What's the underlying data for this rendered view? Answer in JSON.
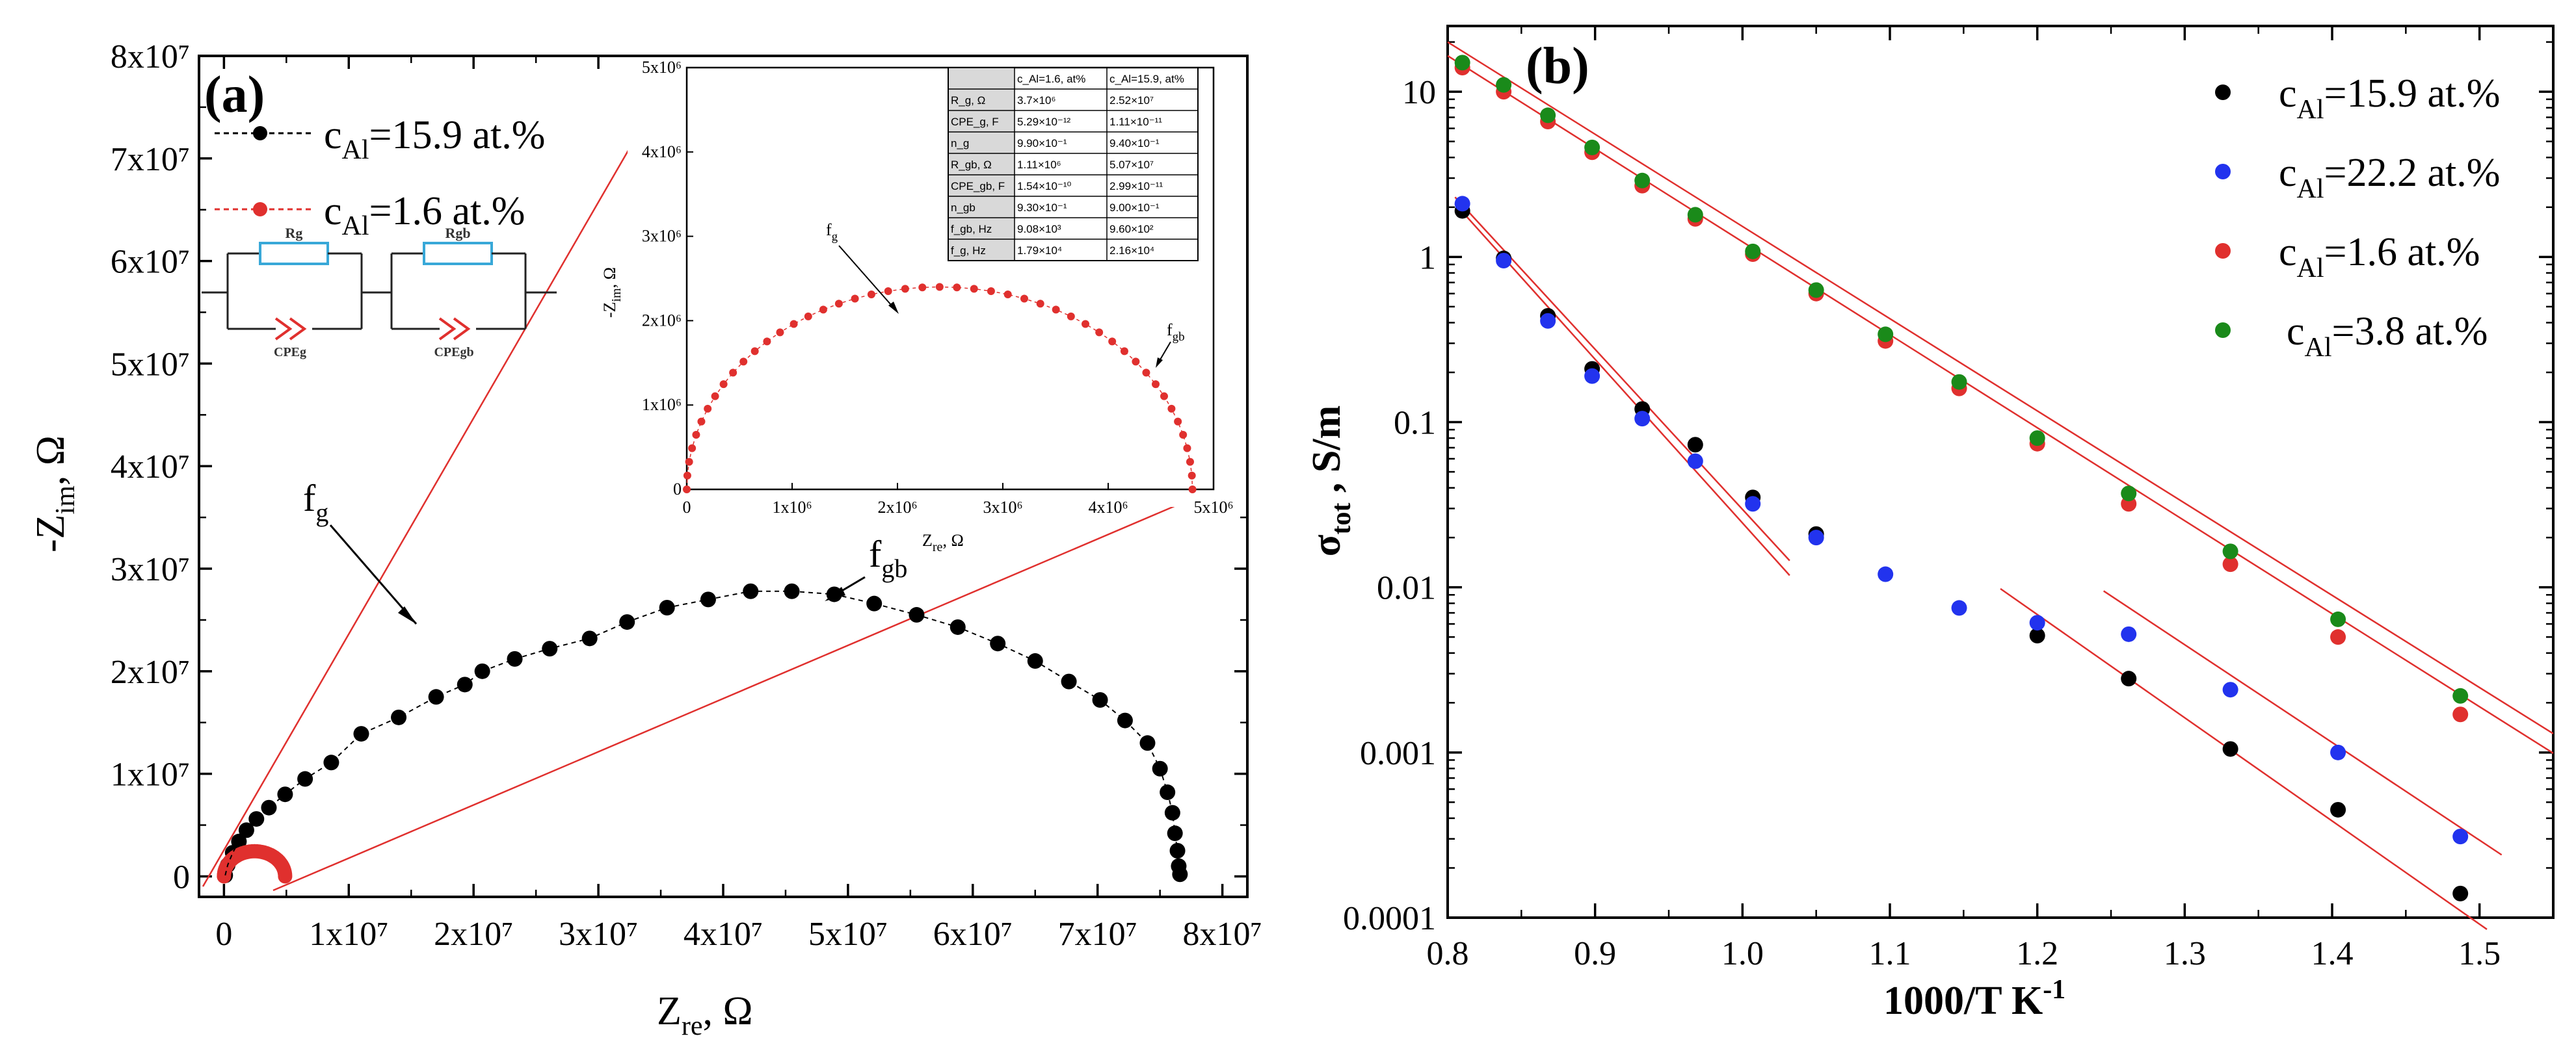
{
  "chart_data": [
    {
      "id": "a",
      "type": "scatter",
      "panel_label": "(a)",
      "xlabel": "Z_re, Ω",
      "ylabel": "-Z_im, Ω",
      "xlim": [
        -2000000.0,
        82000000.0
      ],
      "ylim": [
        -2000000.0,
        80000000.0
      ],
      "x_ticks": [
        0,
        10000000.0,
        20000000.0,
        30000000.0,
        40000000.0,
        50000000.0,
        60000000.0,
        70000000.0,
        80000000.0
      ],
      "x_tick_labels": [
        "0",
        "1x10⁷",
        "2x10⁷",
        "3x10⁷",
        "4x10⁷",
        "5x10⁷",
        "6x10⁷",
        "7x10⁷",
        "8x10⁷"
      ],
      "y_ticks": [
        0,
        10000000.0,
        20000000.0,
        30000000.0,
        40000000.0,
        50000000.0,
        60000000.0,
        70000000.0,
        80000000.0
      ],
      "y_tick_labels": [
        "0",
        "1x10⁷",
        "2x10⁷",
        "3x10⁷",
        "4x10⁷",
        "5x10⁷",
        "6x10⁷",
        "7x10⁷",
        "8x10⁷"
      ],
      "series": [
        {
          "name": "c_Al=15.9 at.%",
          "legend_base": "c",
          "legend_sub": "Al",
          "legend_rest": "=15.9 at.%",
          "color": "#000000",
          "points": [
            [
              100000.0,
              100000.0
            ],
            [
              300000.0,
              1100000.0
            ],
            [
              700000.0,
              2300000.0
            ],
            [
              1200000.0,
              3400000.0
            ],
            [
              1800000.0,
              4500000.0
            ],
            [
              2600000.0,
              5600000.0
            ],
            [
              3600000.0,
              6700000.0
            ],
            [
              4900000.0,
              8000000.0
            ],
            [
              6500000.0,
              9500000.0
            ],
            [
              8600000.0,
              11100000.0
            ],
            [
              11000000.0,
              13900000.0
            ],
            [
              14000000.0,
              15500000.0
            ],
            [
              17000000.0,
              17500000.0
            ],
            [
              19300000.0,
              18700000.0
            ],
            [
              20700000.0,
              20000000.0
            ],
            [
              23300000.0,
              21200000.0
            ],
            [
              26100000.0,
              22200000.0
            ],
            [
              29300000.0,
              23200000.0
            ],
            [
              32300000.0,
              24800000.0
            ],
            [
              35500000.0,
              26200000.0
            ],
            [
              38800000.0,
              27000000.0
            ],
            [
              42200000.0,
              27800000.0
            ],
            [
              45500000.0,
              27800000.0
            ],
            [
              48900000.0,
              27500000.0
            ],
            [
              52100000.0,
              26600000.0
            ],
            [
              55500000.0,
              25500000.0
            ],
            [
              58800000.0,
              24300000.0
            ],
            [
              62000000.0,
              22700000.0
            ],
            [
              65000000.0,
              21000000.0
            ],
            [
              67700000.0,
              19000000.0
            ],
            [
              70200000.0,
              17200000.0
            ],
            [
              72200000.0,
              15200000.0
            ],
            [
              74000000.0,
              13000000.0
            ],
            [
              75000000.0,
              10500000.0
            ],
            [
              75600000.0,
              8200000.0
            ],
            [
              76000000.0,
              6200000.0
            ],
            [
              76200000.0,
              4200000.0
            ],
            [
              76400000.0,
              2500000.0
            ],
            [
              76500000.0,
              1000000.0
            ],
            [
              76600000.0,
              200000.0
            ]
          ]
        },
        {
          "name": "c_Al=1.6 at.%",
          "legend_base": "c",
          "legend_sub": "Al",
          "legend_rest": "=1.6 at.%",
          "color": "#e0302e",
          "semicircle": {
            "center_re": 2450000.0,
            "radius": 2450000.0,
            "n": 40
          }
        }
      ],
      "annotations": {
        "f_g": {
          "base": "f",
          "sub": "g"
        },
        "f_gb": {
          "base": "f",
          "sub": "gb"
        }
      },
      "circuit": {
        "elements": [
          "R_g",
          "R_gb",
          "CPE_g",
          "CPE_gb"
        ],
        "R_g_label": "Rg",
        "R_gb_label": "Rgb",
        "CPE_g_label": "CPEg",
        "CPE_gb_label": "CPEgb"
      },
      "inset": {
        "xlabel": "Z_re, Ω",
        "ylabel": "-Z_im, Ω",
        "xlim": [
          0,
          5000000.0
        ],
        "ylim": [
          0,
          5000000.0
        ],
        "x_tick_labels": [
          "0",
          "1x10⁶",
          "2x10⁶",
          "3x10⁶",
          "4x10⁶",
          "5x10⁶"
        ],
        "y_tick_labels": [
          "0",
          "1x10⁶",
          "2x10⁶",
          "3x10⁶",
          "4x10⁶",
          "5x10⁶"
        ],
        "semicircle": {
          "center_re": 2400000.0,
          "radius": 2400000.0,
          "n": 46,
          "color": "#e0302e"
        },
        "annotations": {
          "f_g": {
            "base": "f",
            "sub": "g"
          },
          "f_gb": {
            "base": "f",
            "sub": "gb"
          }
        },
        "table": {
          "headers": [
            "",
            "c_Al=1.6, at%",
            "c_Al=15.9, at%"
          ],
          "rows": [
            [
              "R_g, Ω",
              "3.7×10⁶",
              "2.52×10⁷"
            ],
            [
              "CPE_g, F",
              "5.29×10⁻¹²",
              "1.11×10⁻¹¹"
            ],
            [
              "n_g",
              "9.90×10⁻¹",
              "9.40×10⁻¹"
            ],
            [
              "R_gb, Ω",
              "1.11×10⁶",
              "5.07×10⁷"
            ],
            [
              "CPE_gb, F",
              "1.54×10⁻¹⁰",
              "2.99×10⁻¹¹"
            ],
            [
              "n_gb",
              "9.30×10⁻¹",
              "9.00×10⁻¹"
            ],
            [
              "f_gb, Hz",
              "9.08×10³",
              "9.60×10²"
            ],
            [
              "f_g, Hz",
              "1.79×10⁴",
              "2.16×10⁴"
            ]
          ]
        }
      }
    },
    {
      "id": "b",
      "type": "scatter",
      "panel_label": "(b)",
      "xlabel": "1000/T  K⁻¹",
      "ylabel": "σ_tot , S/m",
      "yscale": "log",
      "xlim": [
        0.8,
        1.55
      ],
      "ylim": [
        0.0001,
        25
      ],
      "x_ticks": [
        0.8,
        0.9,
        1.0,
        1.1,
        1.2,
        1.3,
        1.4,
        1.5
      ],
      "x_tick_labels": [
        "0.8",
        "0.9",
        "1.0",
        "1.1",
        "1.2",
        "1.3",
        "1.4",
        "1.5"
      ],
      "y_ticks": [
        0.0001,
        0.001,
        0.01,
        0.1,
        1,
        10
      ],
      "y_tick_labels": [
        "0.0001",
        "0.001",
        "0.01",
        "0.1",
        "1",
        "10"
      ],
      "series": [
        {
          "name": "c_Al=15.9 at.%",
          "legend_base": "c",
          "legend_sub": "Al",
          "legend_rest": "=15.9 at.%",
          "color": "#000000",
          "x": [
            0.81,
            0.838,
            0.868,
            0.898,
            0.932,
            0.968,
            1.007,
            1.05,
            1.2,
            1.262,
            1.331,
            1.404,
            1.487
          ],
          "y": [
            1.9,
            0.98,
            0.44,
            0.21,
            0.12,
            0.073,
            0.035,
            0.021,
            0.0051,
            0.0028,
            0.00105,
            0.00045,
            0.00014
          ]
        },
        {
          "name": "c_Al=22.2 at.%",
          "legend_base": "c",
          "legend_sub": "Al",
          "legend_rest": "=22.2 at.%",
          "color": "#2233ee",
          "x": [
            0.81,
            0.838,
            0.868,
            0.898,
            0.932,
            0.968,
            1.007,
            1.05,
            1.097,
            1.147,
            1.2,
            1.262,
            1.331,
            1.404,
            1.487
          ],
          "y": [
            2.1,
            0.95,
            0.41,
            0.19,
            0.105,
            0.058,
            0.032,
            0.02,
            0.012,
            0.0075,
            0.0061,
            0.0052,
            0.0024,
            0.001,
            0.00031
          ]
        },
        {
          "name": "c_Al=1.6 at.%",
          "legend_base": "c",
          "legend_sub": "Al",
          "legend_rest": "=1.6 at.%",
          "color": "#e0302e",
          "x": [
            0.81,
            0.838,
            0.868,
            0.898,
            0.932,
            0.968,
            1.007,
            1.05,
            1.097,
            1.147,
            1.2,
            1.262,
            1.331,
            1.404,
            1.487
          ],
          "y": [
            14,
            10,
            6.6,
            4.3,
            2.7,
            1.7,
            1.04,
            0.6,
            0.31,
            0.16,
            0.074,
            0.032,
            0.0138,
            0.005,
            0.0017
          ]
        },
        {
          "name": "c_Al=3.8 at.%",
          "legend_base": "c",
          "legend_sub": "Al",
          "legend_rest": "=3.8 at.%",
          "color": "#1a8a1a",
          "x": [
            0.81,
            0.838,
            0.868,
            0.898,
            0.932,
            0.968,
            1.007,
            1.05,
            1.097,
            1.147,
            1.2,
            1.262,
            1.331,
            1.404,
            1.487
          ],
          "y": [
            15,
            11,
            7.2,
            4.6,
            2.9,
            1.8,
            1.08,
            0.63,
            0.34,
            0.175,
            0.08,
            0.037,
            0.0165,
            0.0064,
            0.0022
          ]
        }
      ],
      "fit_lines": [
        {
          "x1": 0.8,
          "y1": 20,
          "x2": 1.55,
          "y2": 0.0013
        },
        {
          "x1": 0.8,
          "y1": 16.5,
          "x2": 1.55,
          "y2": 0.00099
        },
        {
          "x1": 0.805,
          "y1": 2.3,
          "x2": 1.032,
          "y2": 0.0145
        },
        {
          "x1": 0.805,
          "y1": 2.1,
          "x2": 1.032,
          "y2": 0.0118
        },
        {
          "x1": 1.175,
          "y1": 0.0098,
          "x2": 1.505,
          "y2": 8.5e-05
        },
        {
          "x1": 1.245,
          "y1": 0.0095,
          "x2": 1.515,
          "y2": 0.00024
        }
      ]
    }
  ]
}
